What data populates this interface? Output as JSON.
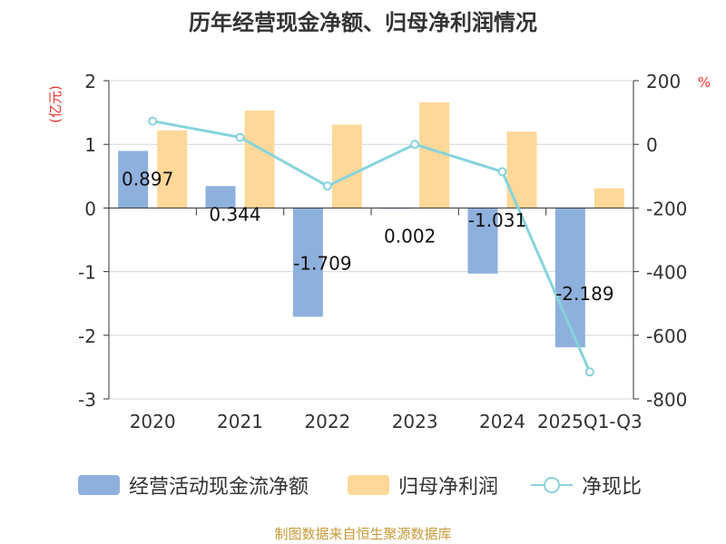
{
  "chart_data": {
    "type": "bar+line",
    "title": "历年经营现金净额、归母净利润情况",
    "categories": [
      "2020",
      "2021",
      "2022",
      "2023",
      "2024",
      "2025Q1-Q3"
    ],
    "series": [
      {
        "name": "经营活动现金流净额",
        "type": "bar",
        "axis": "left",
        "color": "#8eb0dd",
        "values": [
          0.897,
          0.344,
          -1.709,
          0.002,
          -1.031,
          -2.189
        ],
        "labels": [
          "0.897",
          "0.344",
          "-1.709",
          "0.002",
          "-1.031",
          "-2.189"
        ]
      },
      {
        "name": "归母净利润",
        "type": "bar",
        "axis": "left",
        "color": "#fdd898",
        "values": [
          1.22,
          1.53,
          1.31,
          1.66,
          1.2,
          0.31
        ]
      },
      {
        "name": "净现比",
        "type": "line",
        "axis": "right",
        "color": "#86d3dc",
        "values": [
          73,
          22,
          -131,
          0,
          -86,
          -715
        ]
      }
    ],
    "y_left": {
      "label": "(亿元)",
      "min": -3,
      "max": 2,
      "ticks": [
        "-3",
        "-2",
        "-1",
        "0",
        "1",
        "2"
      ],
      "tick_values": [
        -3,
        -2,
        -1,
        0,
        1,
        2
      ]
    },
    "y_right": {
      "label": "%",
      "min": -800,
      "max": 200,
      "ticks": [
        "-800",
        "-600",
        "-400",
        "-200",
        "0",
        "200"
      ],
      "tick_values": [
        -800,
        -600,
        -400,
        -200,
        0,
        200
      ]
    },
    "grid": true,
    "legend_position": "bottom"
  },
  "legend": {
    "items": [
      {
        "label": "经营活动现金流净额",
        "color": "#8eb0dd"
      },
      {
        "label": "归母净利润",
        "color": "#fdd898"
      },
      {
        "label": "净现比",
        "color": "#86d3dc"
      }
    ]
  },
  "source": "制图数据来自恒生聚源数据库"
}
